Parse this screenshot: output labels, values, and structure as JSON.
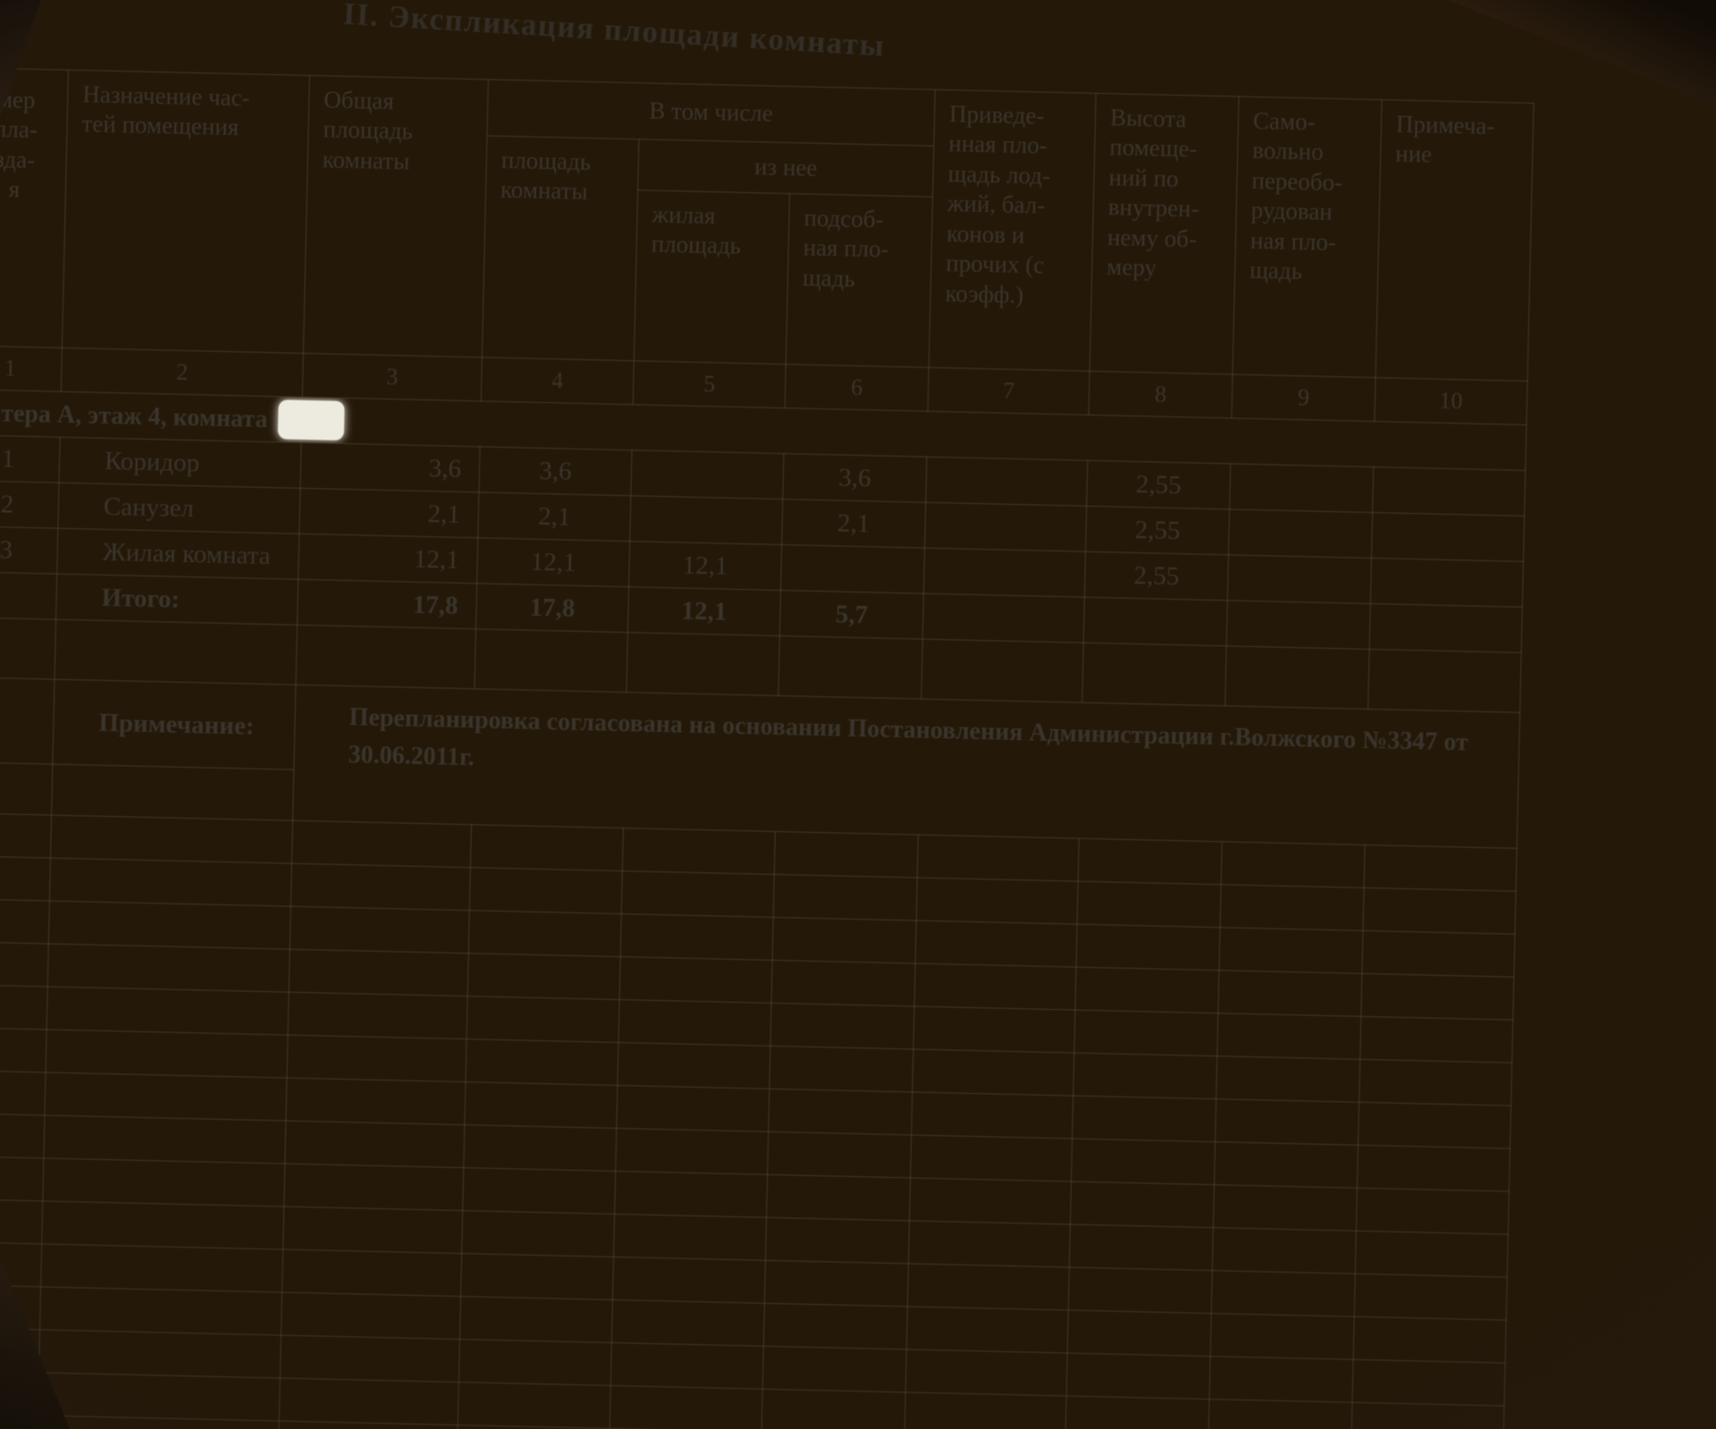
{
  "colors": {
    "photo_background": "#241808",
    "paper": "#d9d5ca",
    "ink": "#39342c",
    "grid_line": "#58503f",
    "whiteout_patch": "#edeadf"
  },
  "title": "II. Экспликация площади комнаты",
  "table": {
    "header": {
      "col1": "мер\nпла-\nзда-\nя",
      "col2": "Назначение час-\nтей помещения",
      "col3": "Общая\nплощадь\nкомнаты",
      "in_total": "В том числе",
      "col4": "площадь\nкомнаты",
      "of_it": "из нее",
      "col5": "жилая\nплощадь",
      "col6": "подсоб-\nная пло-\nщадь",
      "col7": "Приведе-\nнная пло-\nщадь лод-\nжий, бал-\nконов и\nпрочих (с\nкоэфф.)",
      "col8": "Высота\nпомеще-\nний по\nвнутрен-\nнему об-\nмеру",
      "col9": "Само-\nвольно\nпереобо-\nрудован\nная пло-\nщадь",
      "col10": "Примеча-\nние"
    },
    "column_numbers": [
      "1",
      "2",
      "3",
      "4",
      "5",
      "6",
      "7",
      "8",
      "9",
      "10"
    ],
    "section_row": "тера А, этаж 4, комната",
    "rows": [
      {
        "num": "1",
        "name": "Коридор",
        "total": "3,6",
        "room": "3,6",
        "living": "",
        "aux": "3,6",
        "loggia": "",
        "height": "2,55",
        "unauth": "",
        "note": ""
      },
      {
        "num": "2",
        "name": "Санузел",
        "total": "2,1",
        "room": "2,1",
        "living": "",
        "aux": "2,1",
        "loggia": "",
        "height": "2,55",
        "unauth": "",
        "note": ""
      },
      {
        "num": "3",
        "name": "Жилая комната",
        "total": "12,1",
        "room": "12,1",
        "living": "12,1",
        "aux": "",
        "loggia": "",
        "height": "2,55",
        "unauth": "",
        "note": ""
      }
    ],
    "total_row": {
      "label": "Итого:",
      "total": "17,8",
      "room": "17,8",
      "living": "12,1",
      "aux": "5,7"
    },
    "note_label": "Примечание:",
    "note_text": "Перепланировка согласована на основании Постановления Администрации г.Волжского №3347 от 30.06.2011г."
  }
}
